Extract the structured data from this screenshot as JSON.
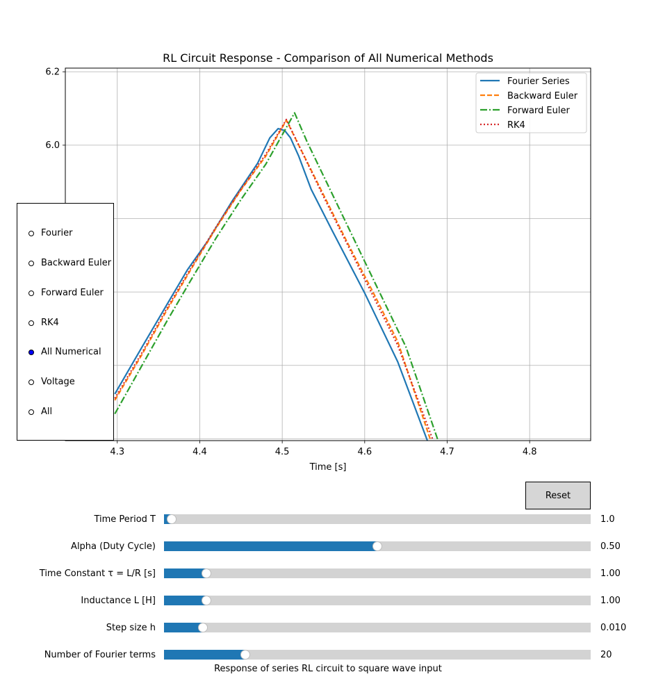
{
  "chart_data": {
    "type": "line",
    "title": "RL Circuit Response - Comparison of All Numerical Methods",
    "xlabel": "Time [s]",
    "ylabel": "",
    "xlim": [
      4.237,
      4.874
    ],
    "ylim": [
      5.195,
      6.21
    ],
    "grid": true,
    "legend_position": "top-right",
    "x_ticks": [
      4.3,
      4.4,
      4.5,
      4.6,
      4.7,
      4.8
    ],
    "x_tick_labels": [
      "4.3",
      "4.4",
      "4.5",
      "4.6",
      "4.7",
      "4.8"
    ],
    "y_ticks": [
      5.2,
      5.4,
      5.6,
      5.8,
      6.0,
      6.2
    ],
    "y_tick_labels": [
      "",
      "",
      "",
      "",
      "6.0",
      "6.2"
    ],
    "series": [
      {
        "name": "Fourier Series",
        "color": "#1f77b4",
        "style": "solid",
        "x": [
          4.297,
          4.33,
          4.36,
          4.385,
          4.41,
          4.44,
          4.47,
          4.485,
          4.495,
          4.503,
          4.51,
          4.52,
          4.535,
          4.56,
          4.6,
          4.64,
          4.676
        ],
        "y": [
          5.322,
          5.45,
          5.565,
          5.66,
          5.74,
          5.85,
          5.95,
          6.02,
          6.045,
          6.04,
          6.02,
          5.97,
          5.88,
          5.77,
          5.597,
          5.41,
          5.195
        ]
      },
      {
        "name": "Backward Euler",
        "color": "#ff7f0e",
        "style": "dashed",
        "x": [
          4.297,
          4.33,
          4.36,
          4.39,
          4.42,
          4.45,
          4.48,
          4.505,
          4.52,
          4.55,
          4.58,
          4.61,
          4.64,
          4.68
        ],
        "y": [
          5.305,
          5.43,
          5.55,
          5.664,
          5.775,
          5.878,
          5.97,
          6.068,
          6.0,
          5.865,
          5.73,
          5.6,
          5.465,
          5.195
        ]
      },
      {
        "name": "Forward Euler",
        "color": "#2ca02c",
        "style": "dashdot",
        "x": [
          4.297,
          4.33,
          4.36,
          4.39,
          4.42,
          4.45,
          4.48,
          4.515,
          4.53,
          4.56,
          4.59,
          4.62,
          4.65,
          4.689
        ],
        "y": [
          5.268,
          5.4,
          5.52,
          5.635,
          5.748,
          5.852,
          5.948,
          6.088,
          6.01,
          5.87,
          5.73,
          5.59,
          5.45,
          5.195
        ]
      },
      {
        "name": "RK4",
        "color": "#d62728",
        "style": "dotted",
        "x": [
          4.297,
          4.33,
          4.36,
          4.39,
          4.42,
          4.45,
          4.48,
          4.505,
          4.52,
          4.55,
          4.58,
          4.61,
          4.64,
          4.683
        ],
        "y": [
          5.31,
          5.435,
          5.555,
          5.668,
          5.778,
          5.88,
          5.975,
          6.07,
          6.0,
          5.86,
          5.725,
          5.59,
          5.455,
          5.195
        ]
      }
    ]
  },
  "radio": {
    "options": [
      "Fourier",
      "Backward Euler",
      "Forward Euler",
      "RK4",
      "All Numerical",
      "Voltage",
      "All"
    ],
    "selected": "All Numerical"
  },
  "reset_label": "Reset",
  "sliders": [
    {
      "label": "Time Period T",
      "value_text": "1.0",
      "fraction": 0.018
    },
    {
      "label": "Alpha (Duty Cycle)",
      "value_text": "0.50",
      "fraction": 0.5
    },
    {
      "label": "Time Constant τ = L/R [s]",
      "value_text": "1.00",
      "fraction": 0.099
    },
    {
      "label": "Inductance L [H]",
      "value_text": "1.00",
      "fraction": 0.099
    },
    {
      "label": "Step size h",
      "value_text": "0.010",
      "fraction": 0.092
    },
    {
      "label": "Number of Fourier terms",
      "value_text": "20",
      "fraction": 0.19
    }
  ],
  "caption": "Response of series RL circuit to square wave input"
}
